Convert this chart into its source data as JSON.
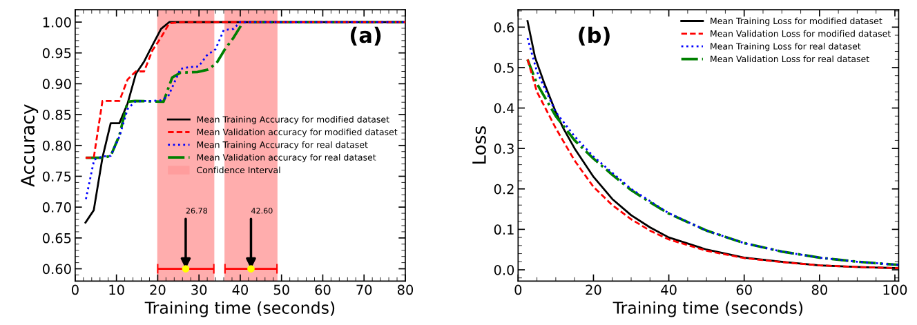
{
  "chart_data": [
    {
      "type": "line",
      "xlabel": "Training time (seconds)",
      "ylabel": "Accuracy",
      "xlim": [
        0,
        80
      ],
      "xticks": [
        0,
        10,
        20,
        30,
        40,
        50,
        60,
        70,
        80
      ],
      "ylim": [
        0.58,
        1.02
      ],
      "yticks": [
        {
          "value": 0.6,
          "label": "0.60"
        },
        {
          "value": 0.65,
          "label": "0.65"
        },
        {
          "value": 0.7,
          "label": "0.70"
        },
        {
          "value": 0.75,
          "label": "0.75"
        },
        {
          "value": 0.8,
          "label": "0.80"
        },
        {
          "value": 0.85,
          "label": "0.85"
        },
        {
          "value": 0.9,
          "label": "0.90"
        },
        {
          "value": 0.95,
          "label": "0.95"
        },
        {
          "value": 1.0,
          "label": "1.00"
        }
      ],
      "legend": "center right",
      "grid": false,
      "series": [
        {
          "name": "Mean Training Accuracy for modified dataset",
          "color": "#000000",
          "line_style": "solid",
          "x": [
            2.5,
            4.5,
            6.6,
            8.6,
            10.7,
            12.7,
            14.7,
            16.7,
            18.7,
            20.8,
            22.8,
            80
          ],
          "values": [
            0.675,
            0.695,
            0.78,
            0.836,
            0.836,
            0.868,
            0.916,
            0.936,
            0.962,
            0.989,
            1.0,
            1.0
          ]
        },
        {
          "name": "Mean Validation accuracy for modified dataset",
          "color": "#ff0000",
          "line_style": "dashed",
          "x": [
            2.5,
            4.5,
            6.6,
            10.7,
            12.7,
            14.7,
            16.7,
            18.7,
            20.8,
            22.8,
            26,
            80
          ],
          "values": [
            0.78,
            0.78,
            0.872,
            0.872,
            0.907,
            0.92,
            0.92,
            0.954,
            0.975,
            0.998,
            1.0,
            1.0
          ]
        },
        {
          "name": "Mean Training Accuracy for real dataset",
          "color": "#0000ff",
          "line_style": "dotted",
          "x": [
            2.6,
            4.6,
            6.6,
            8.6,
            10.7,
            12.7,
            14.5,
            16.6,
            18.6,
            20.7,
            22.5,
            24.5,
            25.5,
            27.6,
            29.9,
            31.9,
            34,
            36,
            38.4,
            39.9,
            80
          ],
          "values": [
            0.713,
            0.777,
            0.782,
            0.783,
            0.814,
            0.859,
            0.871,
            0.872,
            0.872,
            0.873,
            0.879,
            0.909,
            0.924,
            0.927,
            0.928,
            0.946,
            0.956,
            0.987,
            0.989,
            1.0,
            1.0
          ]
        },
        {
          "name": "Mean Validation accuracy for real dataset",
          "color": "#008000",
          "line_style": "dashdot",
          "x": [
            2.6,
            4.6,
            6.6,
            8.6,
            10.7,
            12.7,
            14.5,
            21.4,
            23.5,
            25.5,
            29.6,
            32.2,
            34.3,
            36.3,
            38.4,
            40.7,
            80
          ],
          "values": [
            0.78,
            0.78,
            0.78,
            0.783,
            0.816,
            0.871,
            0.872,
            0.871,
            0.91,
            0.918,
            0.919,
            0.923,
            0.934,
            0.956,
            0.975,
            1.0,
            1.0
          ]
        },
        {
          "type": "scatter",
          "color": "#ffff00",
          "marker": "circle",
          "x": [
            26.78,
            42.6
          ],
          "values": [
            0.6,
            0.6
          ],
          "xerrors": [
            [
              20,
              33.6
            ],
            [
              36.3,
              48.9
            ]
          ]
        }
      ],
      "bands": [
        {
          "axis": "x",
          "from": 20,
          "to": 33.6,
          "label": "Confidence Interval",
          "color": "#ff9999"
        },
        {
          "axis": "x",
          "from": 36.3,
          "to": 48.9,
          "color": "#ff9999"
        }
      ],
      "annotations": [
        "(a)",
        {
          "text": "26.78",
          "x": 26.78,
          "y": 0.6
        },
        {
          "text": "42.60",
          "x": 42.6,
          "y": 0.6
        }
      ]
    },
    {
      "type": "line",
      "xlabel": "Training time (seconds)",
      "ylabel": "Loss",
      "xlim": [
        0,
        101
      ],
      "xticks": [
        0,
        20,
        40,
        60,
        80,
        100
      ],
      "ylim": [
        -0.028,
        0.643
      ],
      "yticks": [
        {
          "value": 0.0,
          "label": "0.0"
        },
        0.1,
        0.2,
        0.3,
        0.4,
        0.5,
        0.6
      ],
      "legend": "top right",
      "grid": false,
      "series": [
        {
          "name": "Mean Training Loss for modified dataset",
          "color": "#000000",
          "line_style": "solid",
          "x": [
            2.5,
            4.5,
            7,
            10,
            12,
            15,
            20,
            25,
            30,
            35,
            40,
            50,
            60,
            70,
            80,
            90,
            101
          ],
          "values": [
            0.615,
            0.525,
            0.46,
            0.39,
            0.35,
            0.3,
            0.23,
            0.175,
            0.135,
            0.105,
            0.08,
            0.05,
            0.03,
            0.02,
            0.011,
            0.007,
            0.004
          ]
        },
        {
          "name": "Mean Validation Loss for modified dataset",
          "color": "#ff0000",
          "line_style": "dashed",
          "x": [
            2.5,
            5,
            10,
            15,
            20,
            25,
            30,
            35,
            40,
            50,
            60,
            70,
            80,
            90,
            101
          ],
          "values": [
            0.52,
            0.44,
            0.35,
            0.27,
            0.205,
            0.16,
            0.125,
            0.097,
            0.075,
            0.047,
            0.029,
            0.019,
            0.011,
            0.007,
            0.004
          ]
        },
        {
          "name": "Mean Training Loss for real dataset",
          "color": "#0000ff",
          "line_style": "dotted",
          "x": [
            2.5,
            5,
            10,
            15,
            20,
            25,
            30,
            35,
            40,
            50,
            60,
            70,
            80,
            90,
            101
          ],
          "values": [
            0.573,
            0.49,
            0.39,
            0.33,
            0.28,
            0.24,
            0.2,
            0.17,
            0.14,
            0.097,
            0.066,
            0.045,
            0.03,
            0.02,
            0.012
          ]
        },
        {
          "name": "Mean Validation Loss for real dataset",
          "color": "#008000",
          "line_style": "dashdot",
          "x": [
            2.5,
            5,
            10,
            15,
            20,
            25,
            30,
            35,
            40,
            50,
            60,
            70,
            80,
            90,
            101
          ],
          "values": [
            0.52,
            0.46,
            0.38,
            0.32,
            0.275,
            0.235,
            0.197,
            0.167,
            0.139,
            0.097,
            0.066,
            0.045,
            0.03,
            0.02,
            0.012
          ]
        }
      ],
      "annotations": [
        "(b)"
      ]
    }
  ]
}
